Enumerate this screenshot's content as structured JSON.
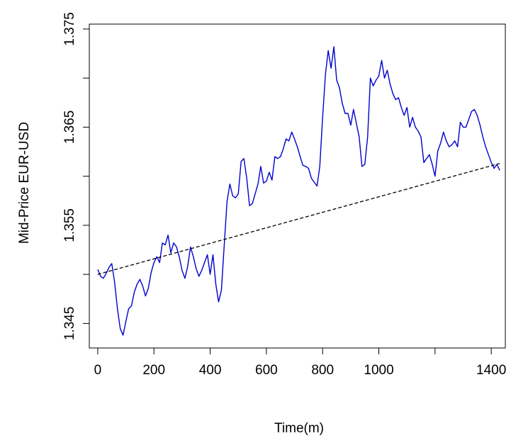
{
  "chart_data": {
    "type": "line",
    "title": "",
    "xlabel": "Time(m)",
    "ylabel": "Mid-Price  EUR-USD",
    "xlim": [
      -30,
      1450
    ],
    "ylim": [
      1.3425,
      1.3755
    ],
    "xticks": [
      {
        "value": 0,
        "label": "0"
      },
      {
        "value": 200,
        "label": "200"
      },
      {
        "value": 400,
        "label": "400"
      },
      {
        "value": 600,
        "label": "600"
      },
      {
        "value": 800,
        "label": "800"
      },
      {
        "value": 1000,
        "label": "1000"
      },
      {
        "value": 1200,
        "label": ""
      },
      {
        "value": 1400,
        "label": "1400"
      }
    ],
    "yticks": [
      {
        "value": 1.345,
        "label": "1.345"
      },
      {
        "value": 1.35,
        "label": ""
      },
      {
        "value": 1.355,
        "label": "1.355"
      },
      {
        "value": 1.36,
        "label": ""
      },
      {
        "value": 1.365,
        "label": "1.365"
      },
      {
        "value": 1.37,
        "label": ""
      },
      {
        "value": 1.375,
        "label": "1.375"
      }
    ],
    "grid": false,
    "colors": {
      "price": "#0000cc",
      "trend": "#000000"
    },
    "series": [
      {
        "style": "solid",
        "x": [
          0,
          10,
          20,
          30,
          40,
          50,
          60,
          70,
          80,
          90,
          100,
          110,
          120,
          130,
          140,
          150,
          160,
          170,
          180,
          190,
          200,
          210,
          220,
          230,
          240,
          250,
          260,
          270,
          280,
          290,
          300,
          310,
          320,
          330,
          340,
          350,
          360,
          370,
          380,
          390,
          400,
          410,
          420,
          430,
          440,
          450,
          460,
          470,
          480,
          490,
          500,
          510,
          520,
          530,
          540,
          550,
          560,
          570,
          580,
          590,
          600,
          610,
          620,
          630,
          640,
          650,
          660,
          670,
          680,
          690,
          700,
          710,
          720,
          730,
          740,
          750,
          760,
          770,
          780,
          790,
          800,
          810,
          820,
          830,
          840,
          850,
          860,
          870,
          880,
          890,
          900,
          910,
          920,
          930,
          940,
          950,
          960,
          970,
          980,
          990,
          1000,
          1010,
          1020,
          1030,
          1040,
          1050,
          1060,
          1070,
          1080,
          1090,
          1100,
          1110,
          1120,
          1130,
          1140,
          1150,
          1160,
          1170,
          1180,
          1190,
          1200,
          1210,
          1220,
          1230,
          1240,
          1250,
          1260,
          1270,
          1280,
          1290,
          1300,
          1310,
          1320,
          1330,
          1340,
          1350,
          1360,
          1370,
          1380,
          1390,
          1400,
          1410,
          1420,
          1430
        ],
        "y": [
          1.3505,
          1.3498,
          1.3496,
          1.3501,
          1.3507,
          1.3511,
          1.3492,
          1.3465,
          1.3445,
          1.3438,
          1.3452,
          1.3465,
          1.3468,
          1.3482,
          1.349,
          1.3495,
          1.3488,
          1.3478,
          1.3486,
          1.3502,
          1.3512,
          1.3518,
          1.3512,
          1.3532,
          1.353,
          1.354,
          1.3522,
          1.3532,
          1.3528,
          1.3518,
          1.3504,
          1.3496,
          1.3508,
          1.3528,
          1.3518,
          1.3506,
          1.3498,
          1.3504,
          1.3512,
          1.352,
          1.35,
          1.352,
          1.349,
          1.3472,
          1.3484,
          1.353,
          1.3574,
          1.3592,
          1.358,
          1.3578,
          1.3582,
          1.3615,
          1.3618,
          1.3598,
          1.357,
          1.3572,
          1.3582,
          1.3592,
          1.361,
          1.3593,
          1.3595,
          1.3604,
          1.3596,
          1.362,
          1.3618,
          1.362,
          1.3628,
          1.3638,
          1.3636,
          1.3645,
          1.3638,
          1.363,
          1.362,
          1.3611,
          1.361,
          1.3608,
          1.3598,
          1.3594,
          1.359,
          1.361,
          1.366,
          1.3704,
          1.3728,
          1.371,
          1.3732,
          1.3698,
          1.369,
          1.3674,
          1.3664,
          1.3664,
          1.3652,
          1.3668,
          1.3654,
          1.364,
          1.361,
          1.3612,
          1.364,
          1.37,
          1.3692,
          1.3698,
          1.3702,
          1.3718,
          1.37,
          1.3708,
          1.3694,
          1.3684,
          1.3678,
          1.368,
          1.367,
          1.3662,
          1.367,
          1.365,
          1.366,
          1.365,
          1.3646,
          1.364,
          1.3614,
          1.3618,
          1.3622,
          1.3612,
          1.36,
          1.3626,
          1.3634,
          1.3645,
          1.3636,
          1.363,
          1.3632,
          1.3636,
          1.363,
          1.3655,
          1.365,
          1.365,
          1.3658,
          1.3666,
          1.3668,
          1.3662,
          1.3652,
          1.364,
          1.363,
          1.3622,
          1.3614,
          1.3608,
          1.3612,
          1.3606
        ]
      },
      {
        "style": "dashed",
        "x": [
          0,
          1430
        ],
        "y": [
          1.35,
          1.3613
        ]
      }
    ]
  }
}
